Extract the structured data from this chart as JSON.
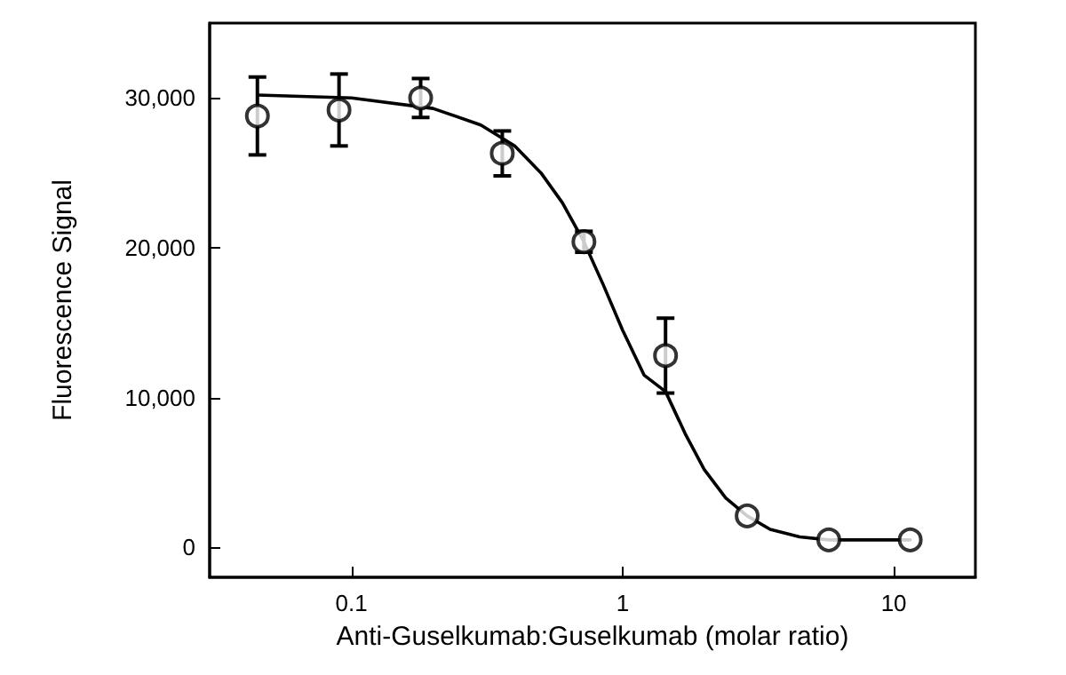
{
  "chart_data": {
    "type": "scatter",
    "xlabel": "Anti-Guselkumab:Guselkumab (molar ratio)",
    "ylabel": "Fluorescence Signal",
    "log": "x",
    "xlim": [
      0.03,
      20
    ],
    "xticks": [
      0.1,
      1,
      10
    ],
    "ylim": [
      -2000,
      35000
    ],
    "yticks": [
      {
        "value": 0,
        "label": "0"
      },
      {
        "value": 10000,
        "label": "10,000"
      },
      {
        "value": 20000,
        "label": "20,000"
      },
      {
        "value": 30000,
        "label": "30,000"
      }
    ],
    "grid": false,
    "marker": "circle",
    "series": [
      {
        "color": "#000000",
        "x": [
          0.045,
          0.09,
          0.18,
          0.36,
          0.72,
          1.44,
          2.88,
          5.76,
          11.5
        ],
        "values": [
          28800,
          29200,
          30000,
          26300,
          20400,
          12800,
          2100,
          500,
          500
        ],
        "errors": [
          2600,
          2400,
          1300,
          1500,
          700,
          2500,
          null,
          null,
          null
        ]
      },
      {
        "type": "line",
        "color": "#000000",
        "marker": "none",
        "line_style": "solid",
        "x": [
          0.045,
          0.1,
          0.2,
          0.3,
          0.4,
          0.5,
          0.6,
          0.72,
          0.85,
          1.0,
          1.2,
          1.44,
          1.7,
          2.0,
          2.4,
          2.88,
          3.5,
          4.5,
          5.76,
          8,
          11.5
        ],
        "values": [
          30200,
          30000,
          29300,
          28200,
          26800,
          25000,
          23000,
          20400,
          17500,
          14500,
          11500,
          10400,
          7600,
          5200,
          3300,
          2100,
          1200,
          700,
          500,
          500,
          500
        ]
      }
    ]
  }
}
